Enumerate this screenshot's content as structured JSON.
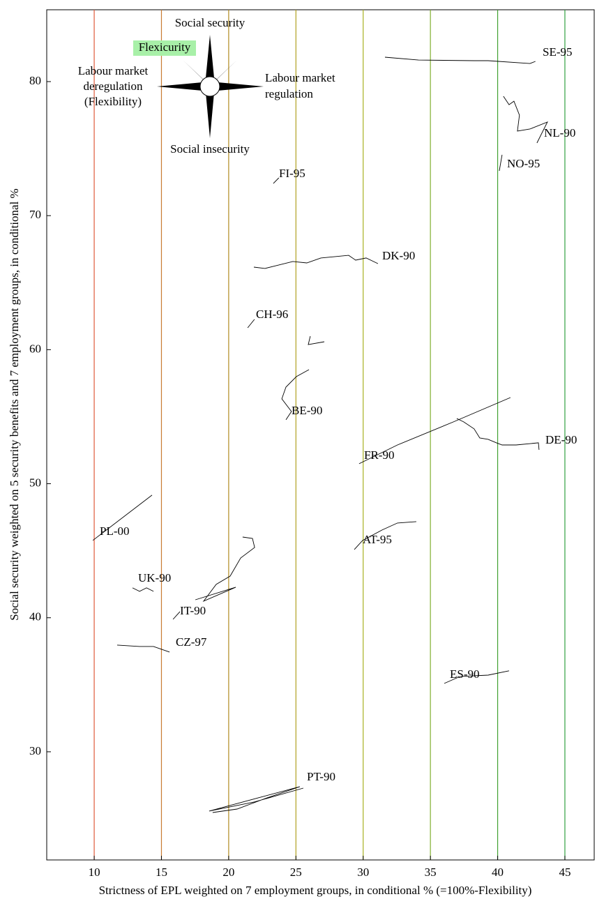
{
  "chart_data": {
    "type": "line",
    "x_label": "Strictness of EPL weighted on 7 employment groups, in conditional % (=100%-Flexibility)",
    "y_label": "Social security weighted on 5 security benefits and 7 employment groups, in conditional %",
    "xlim": [
      6.47,
      47.18
    ],
    "ylim": [
      21.93,
      85.36
    ],
    "xticks": [
      10,
      15,
      20,
      25,
      30,
      35,
      40,
      45
    ],
    "yticks": [
      30,
      40,
      50,
      60,
      70,
      80
    ],
    "grid": true,
    "grid_colors": [
      "#e05a3a",
      "#c87a30",
      "#b08a20",
      "#b0a020",
      "#a8b020",
      "#80b030",
      "#40a030",
      "#30a040"
    ],
    "line_color": "#000000",
    "compass": {
      "north": "Social security",
      "corner": "Flexicurity",
      "west": [
        "Labour market",
        "deregulation",
        "(Flexibility)"
      ],
      "east": [
        "Labour market",
        "regulation"
      ],
      "south": "Social insecurity"
    },
    "series": [
      {
        "name": "SE-95",
        "x": [
          31.62,
          34.11,
          38.25,
          39.29,
          42.4,
          42.81
        ],
        "values": [
          81.82,
          81.61,
          81.56,
          81.56,
          81.35,
          81.51
        ]
      },
      {
        "name": "NL-90",
        "x": [
          40.43,
          40.85,
          41.21,
          41.62,
          41.47,
          42.4,
          43.7,
          42.92
        ],
        "values": [
          78.91,
          78.28,
          78.54,
          77.5,
          76.31,
          76.46,
          76.98,
          75.42
        ]
      },
      {
        "name": "NO-95",
        "x": [
          40.33,
          40.12
        ],
        "values": [
          74.54,
          73.34
        ]
      },
      {
        "name": "FI-95",
        "x": [
          23.32,
          23.73
        ],
        "values": [
          72.4,
          72.82
        ]
      },
      {
        "name": "DK-90",
        "x": [
          21.87,
          22.7,
          24.77,
          25.81,
          26.85,
          28.92,
          29.44,
          30.22,
          31.1
        ],
        "values": [
          66.16,
          66.06,
          66.58,
          66.47,
          66.84,
          67.04,
          66.68,
          66.84,
          66.42
        ]
      },
      {
        "name": "CH-96",
        "x": [
          21.41,
          21.92
        ],
        "values": [
          61.63,
          62.26
        ]
      },
      {
        "name": "BE-90",
        "x": [
          24.26,
          24.67,
          23.95,
          24.26,
          25.03,
          25.97,
          null,
          26.07,
          25.92,
          27.11
        ],
        "values": [
          54.77,
          55.39,
          56.33,
          57.21,
          57.99,
          58.51,
          null,
          61.01,
          60.38,
          60.59
        ]
      },
      {
        "name": "FR-90",
        "x": [
          29.7,
          32.55,
          36.7,
          40.95
        ],
        "values": [
          51.49,
          52.89,
          54.61,
          56.43
        ]
      },
      {
        "name": "DE-90",
        "x": [
          36.96,
          37.48,
          38.25,
          38.67,
          39.29,
          39.91,
          40.33,
          41.37,
          43.03,
          43.08
        ],
        "values": [
          54.87,
          54.61,
          54.09,
          53.41,
          53.31,
          53.05,
          52.89,
          52.89,
          53.05,
          52.53
        ]
      },
      {
        "name": "PL-00",
        "x": [
          9.9,
          14.3
        ],
        "values": [
          45.77,
          49.15
        ]
      },
      {
        "name": "AT-95",
        "x": [
          29.34,
          29.96,
          31.41,
          32.55,
          33.95
        ],
        "values": [
          45.09,
          45.77,
          46.55,
          47.07,
          47.17
        ]
      },
      {
        "name": "UK-90",
        "x": [
          12.85,
          13.37,
          13.89,
          14.41
        ],
        "values": [
          42.23,
          41.97,
          42.23,
          41.97
        ]
      },
      {
        "name": "IT-90",
        "x": [
          15.86,
          16.38,
          null,
          17.52,
          20.53,
          18.14,
          19.07,
          20.11,
          20.89,
          21.93,
          21.77,
          21.04
        ],
        "values": [
          39.88,
          40.46,
          null,
          41.34,
          42.28,
          41.24,
          42.49,
          43.11,
          44.46,
          45.24,
          45.92,
          46.02
        ]
      },
      {
        "name": "CZ-97",
        "x": [
          11.71,
          13.37,
          14.41,
          15.6
        ],
        "values": [
          37.96,
          37.86,
          37.86,
          37.44
        ]
      },
      {
        "name": "ES-90",
        "x": [
          36.03,
          37.22,
          39.29,
          40.85
        ],
        "values": [
          35.1,
          35.62,
          35.72,
          36.04
        ]
      },
      {
        "name": "PT-90",
        "x": [
          18.81,
          20.63,
          22.7,
          25.29,
          18.55,
          21.92,
          25.55
        ],
        "values": [
          25.47,
          25.73,
          26.51,
          27.4,
          25.58,
          26.26,
          27.29
        ]
      }
    ]
  }
}
